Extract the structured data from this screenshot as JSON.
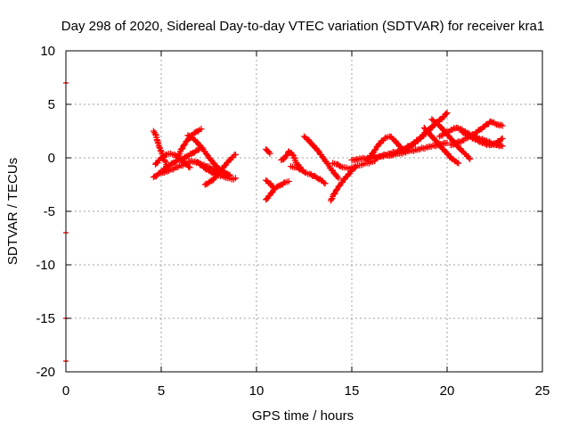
{
  "chart_data": {
    "type": "scatter",
    "title": "Day 298 of 2020, Sidereal Day-to-day VTEC variation (SDTVAR) for receiver kra1",
    "xlabel": "GPS time / hours",
    "ylabel": "SDTVAR / TECUs",
    "xlim": [
      0,
      25
    ],
    "ylim": [
      -20,
      10
    ],
    "xticks": [
      "0",
      "5",
      "10",
      "15",
      "20",
      "25"
    ],
    "yticks": [
      "10",
      "5",
      "0",
      "-5",
      "-10",
      "-15",
      "-20"
    ],
    "grid": true,
    "marker": "+",
    "color": "#ff0000",
    "series": [
      {
        "name": "SDTVAR",
        "segments": [
          {
            "x": [
              4.6,
              4.7,
              4.8,
              4.9,
              5.0,
              5.1,
              5.2,
              5.3
            ],
            "y": [
              2.5,
              2.2,
              1.6,
              1.0,
              0.6,
              0.2,
              -0.3,
              -0.8
            ]
          },
          {
            "x": [
              4.6,
              4.8,
              5.0,
              5.2,
              5.4,
              5.6,
              5.8,
              6.0,
              6.2,
              6.4,
              6.6,
              6.8,
              7.0
            ],
            "y": [
              -1.8,
              -1.6,
              -1.3,
              -1.0,
              -0.7,
              -0.5,
              -0.3,
              -0.1,
              0.0,
              0.2,
              0.4,
              0.6,
              0.8
            ]
          },
          {
            "x": [
              4.7,
              4.9,
              5.1,
              5.3,
              5.5,
              5.7,
              5.9,
              6.1,
              6.3,
              6.5
            ],
            "y": [
              -0.6,
              -0.2,
              0.1,
              0.3,
              0.4,
              0.3,
              0.0,
              -0.3,
              -0.6,
              -0.9
            ]
          },
          {
            "x": [
              5.9,
              6.0,
              6.2,
              6.4,
              6.6,
              6.8,
              7.0,
              7.1
            ],
            "y": [
              0.2,
              0.6,
              1.2,
              1.7,
              2.1,
              2.4,
              2.6,
              2.7
            ]
          },
          {
            "x": [
              6.4,
              6.6,
              6.8,
              7.0,
              7.2,
              7.4,
              7.6,
              7.8,
              8.0,
              8.2,
              8.4,
              8.6
            ],
            "y": [
              2.1,
              1.9,
              1.6,
              1.2,
              0.8,
              0.3,
              -0.2,
              -0.6,
              -1.0,
              -1.2,
              -1.5,
              -1.7
            ]
          },
          {
            "x": [
              6.9,
              7.1,
              7.3,
              7.5,
              7.7,
              7.9,
              8.1,
              8.3,
              8.5,
              8.7,
              8.9
            ],
            "y": [
              -0.4,
              -0.7,
              -1.0,
              -1.2,
              -1.4,
              -1.6,
              -1.7,
              -1.8,
              -1.9,
              -2.0,
              -1.9
            ]
          },
          {
            "x": [
              7.3,
              7.5,
              7.7,
              7.9,
              8.1,
              8.3,
              8.5,
              8.7,
              8.9
            ],
            "y": [
              -2.5,
              -2.3,
              -2.1,
              -1.7,
              -1.2,
              -0.8,
              -0.4,
              0.0,
              0.3
            ]
          },
          {
            "x": [
              5.0,
              5.4,
              5.8,
              6.2,
              6.6,
              7.0,
              7.4,
              7.8,
              8.2,
              8.6
            ],
            "y": [
              -1.4,
              -1.2,
              -0.9,
              -0.6,
              -0.3,
              -0.5,
              -0.8,
              -1.1,
              -1.4,
              -1.6
            ]
          },
          {
            "x": [
              10.5,
              10.6,
              10.7
            ],
            "y": [
              0.8,
              0.6,
              0.4
            ]
          },
          {
            "x": [
              10.5,
              10.7,
              10.9,
              11.1,
              11.3,
              11.5,
              11.7
            ],
            "y": [
              -3.9,
              -3.5,
              -3.0,
              -2.7,
              -2.5,
              -2.3,
              -2.2
            ]
          },
          {
            "x": [
              10.5,
              10.7,
              10.9
            ],
            "y": [
              -2.1,
              -2.4,
              -2.8
            ]
          },
          {
            "x": [
              11.3,
              11.5,
              11.7,
              11.9,
              12.1,
              12.3
            ],
            "y": [
              -0.2,
              0.0,
              0.6,
              0.3,
              -0.5,
              -0.9
            ]
          },
          {
            "x": [
              11.8,
              12.0,
              12.2,
              12.4,
              12.6,
              12.8,
              13.0,
              13.2,
              13.4,
              13.6
            ],
            "y": [
              -0.8,
              -0.9,
              -1.0,
              -1.2,
              -1.4,
              -1.5,
              -1.7,
              -1.9,
              -2.1,
              -2.4
            ]
          },
          {
            "x": [
              12.5,
              12.7,
              12.9,
              13.1,
              13.3,
              13.5,
              13.7,
              13.9,
              14.1,
              14.3
            ],
            "y": [
              2.0,
              1.7,
              1.3,
              0.9,
              0.5,
              0.0,
              -0.5,
              -1.0,
              -1.5,
              -1.9
            ]
          },
          {
            "x": [
              13.9,
              14.0,
              14.2,
              14.4,
              14.6,
              14.8,
              15.0,
              15.2
            ],
            "y": [
              -4.0,
              -3.6,
              -3.0,
              -2.5,
              -2.0,
              -1.6,
              -1.2,
              -0.9
            ]
          },
          {
            "x": [
              14.0,
              14.2,
              14.4,
              14.6,
              14.8,
              15.0,
              15.2,
              15.4,
              15.6,
              15.8,
              16.0,
              16.2
            ],
            "y": [
              -0.5,
              -0.6,
              -0.8,
              -0.9,
              -1.0,
              -0.9,
              -0.8,
              -0.7,
              -0.6,
              -0.5,
              -0.4,
              -0.3
            ]
          },
          {
            "x": [
              15.0,
              15.5,
              16.0,
              16.5,
              17.0,
              17.5,
              18.0,
              18.5,
              19.0,
              19.5,
              20.0
            ],
            "y": [
              -0.2,
              -0.1,
              0.0,
              0.1,
              0.3,
              0.4,
              0.6,
              0.8,
              1.0,
              1.2,
              1.4
            ]
          },
          {
            "x": [
              15.8,
              16.0,
              16.2,
              16.4,
              16.6,
              16.8,
              17.0,
              17.2,
              17.4,
              17.6,
              17.8
            ],
            "y": [
              -0.2,
              0.2,
              0.7,
              1.2,
              1.6,
              1.9,
              2.0,
              1.7,
              1.3,
              0.9,
              0.6
            ]
          },
          {
            "x": [
              16.2,
              16.6,
              17.0,
              17.4,
              17.8,
              18.2,
              18.6,
              19.0,
              19.4,
              19.8
            ],
            "y": [
              0.0,
              0.2,
              0.4,
              0.6,
              0.8,
              1.2,
              1.8,
              2.5,
              3.2,
              3.8
            ]
          },
          {
            "x": [
              17.0,
              17.4,
              17.8,
              18.2,
              18.6,
              19.0,
              19.4,
              19.8,
              20.0
            ],
            "y": [
              0.2,
              0.5,
              0.9,
              1.3,
              1.9,
              2.6,
              3.2,
              3.8,
              4.2
            ]
          },
          {
            "x": [
              18.8,
              19.0,
              19.2,
              19.4,
              19.6,
              19.8,
              20.0,
              20.2,
              20.4,
              20.6
            ],
            "y": [
              2.8,
              2.4,
              2.0,
              1.6,
              1.2,
              0.8,
              0.4,
              0.0,
              -0.3,
              -0.5
            ]
          },
          {
            "x": [
              19.2,
              19.4,
              19.6,
              19.8,
              20.0,
              20.2,
              20.4,
              20.6,
              20.8,
              21.0,
              21.2
            ],
            "y": [
              3.6,
              3.3,
              3.0,
              2.6,
              2.2,
              1.8,
              1.4,
              1.0,
              0.6,
              0.3,
              -0.1
            ]
          },
          {
            "x": [
              19.6,
              19.9,
              20.2,
              20.5,
              20.8,
              21.1,
              21.4,
              21.7,
              22.0,
              22.3,
              22.6,
              22.9
            ],
            "y": [
              2.0,
              2.3,
              2.6,
              2.8,
              2.6,
              2.3,
              2.0,
              1.8,
              1.6,
              1.4,
              1.2,
              1.1
            ]
          },
          {
            "x": [
              20.2,
              20.5,
              20.8,
              21.1,
              21.4,
              21.7,
              22.0,
              22.3,
              22.6,
              22.9
            ],
            "y": [
              1.2,
              1.4,
              1.6,
              1.9,
              2.2,
              2.6,
              3.0,
              3.4,
              3.1,
              3.0
            ]
          },
          {
            "x": [
              20.8,
              21.1,
              21.4,
              21.7,
              22.0,
              22.3,
              22.6,
              22.9
            ],
            "y": [
              2.4,
              2.1,
              1.8,
              1.5,
              1.3,
              1.2,
              1.4,
              1.8
            ]
          }
        ]
      }
    ],
    "edge_marks": {
      "x": [
        0,
        0,
        0,
        0
      ],
      "y": [
        7.0,
        -7.0,
        -15.0,
        -19.0
      ]
    }
  }
}
